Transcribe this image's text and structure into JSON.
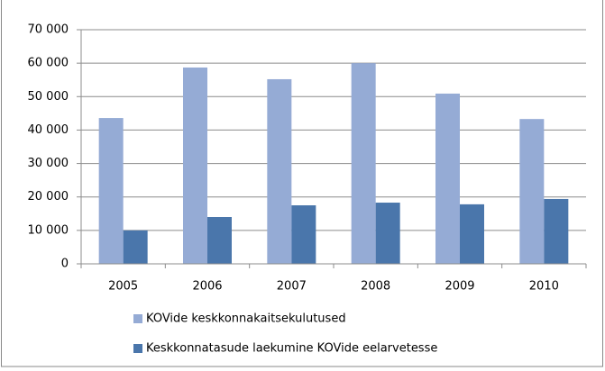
{
  "chart_data": {
    "type": "bar",
    "categories": [
      "2005",
      "2006",
      "2007",
      "2008",
      "2009",
      "2010"
    ],
    "series": [
      {
        "name": "KOVide keskkonnakaitsekulutused",
        "color": "#95abd5",
        "values": [
          43600,
          58700,
          55200,
          60000,
          50900,
          43300
        ]
      },
      {
        "name": "Keskkonnatasude laekumine KOVide eelarvetesse",
        "color": "#4a76ab",
        "values": [
          10000,
          14000,
          17500,
          18300,
          17800,
          19400
        ]
      }
    ],
    "ylim": [
      0,
      70000
    ],
    "yticks": [
      0,
      {
        "value": 10000,
        "label": "10 000"
      },
      {
        "value": 20000,
        "label": "20 000"
      },
      {
        "value": 30000,
        "label": "30 000"
      },
      {
        "value": 40000,
        "label": "40 000"
      },
      {
        "value": 50000,
        "label": "50 000"
      },
      {
        "value": 60000,
        "label": "60 000"
      },
      {
        "value": 70000,
        "label": "70 000"
      }
    ],
    "grid": true,
    "legend": "bottom"
  }
}
